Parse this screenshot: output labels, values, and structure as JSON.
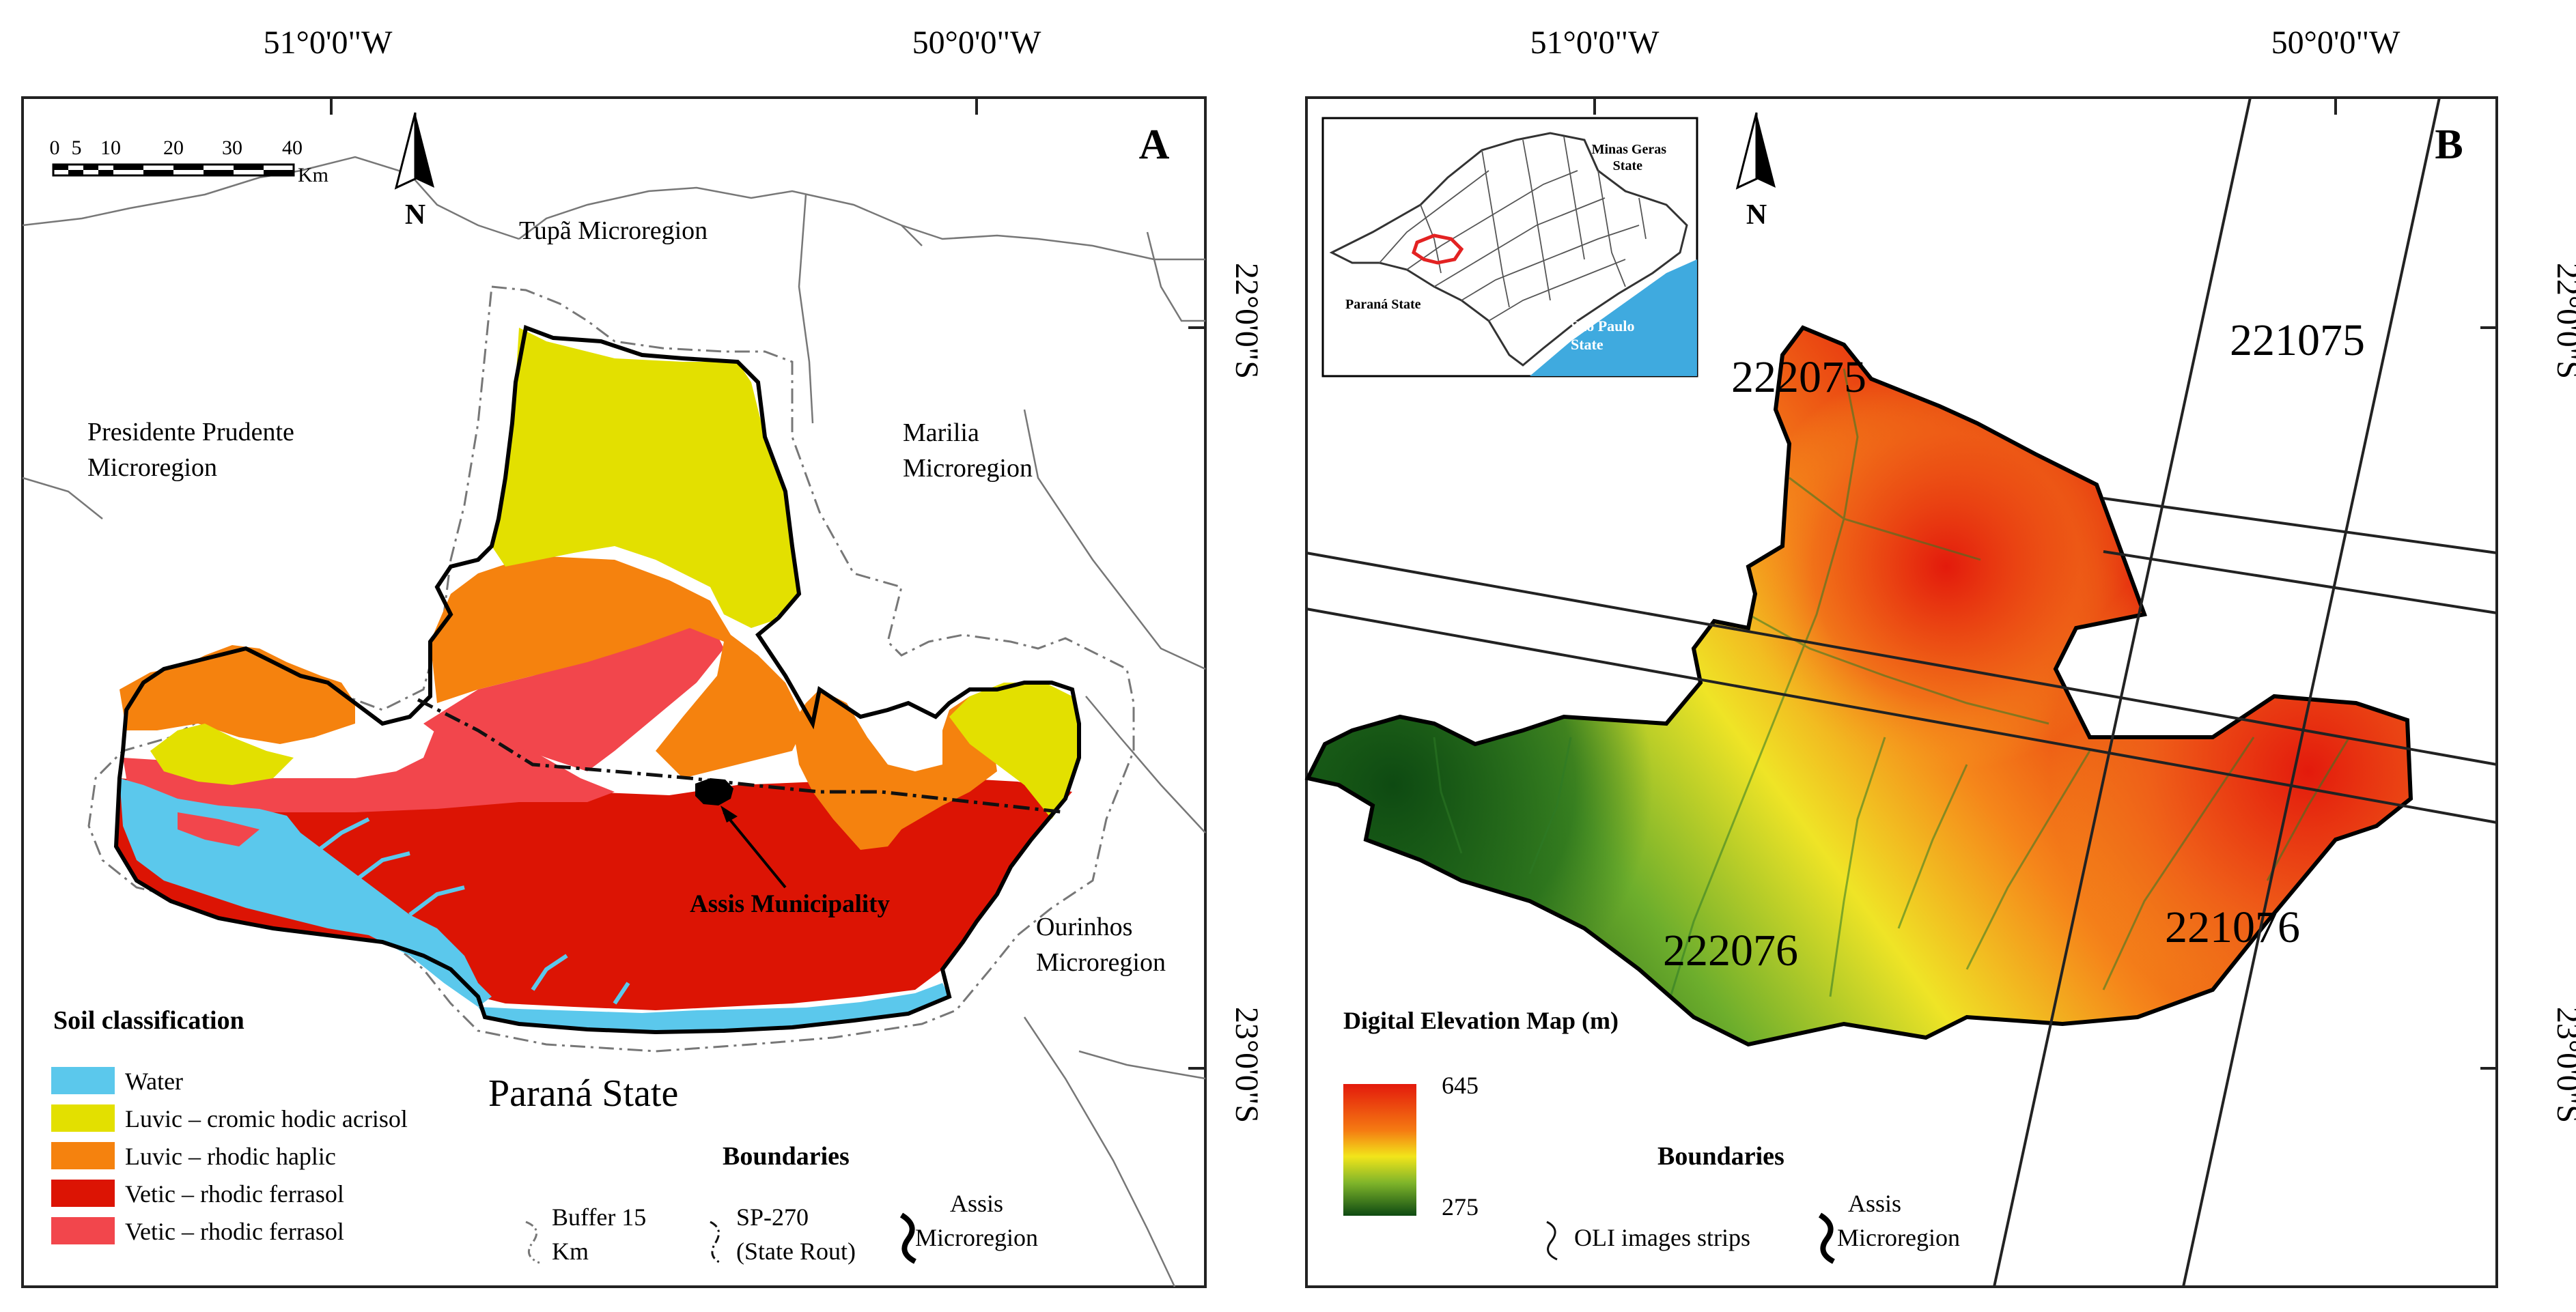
{
  "coordinates": {
    "lon_west": "51°0'0\"W",
    "lon_east": "50°0'0\"W",
    "lat_north": "22°0'0\"S",
    "lat_south": "23°0'0\"S"
  },
  "colors": {
    "water": "#5BC8EC",
    "luvic_cromic": "#E3E000",
    "luvic_rhodic": "#F5820E",
    "vetic_rhodic_dark": "#DC1404",
    "vetic_rhodic_light": "#F2464C",
    "dem_high": "#E31A0C",
    "dem_mid": "#F2E51A",
    "dem_low": "#0E4A12",
    "inset_water": "#3FAADF",
    "inset_highlight": "#E32222"
  },
  "panel_a": {
    "letter": "A",
    "north_label": "N",
    "scale": {
      "ticks": [
        "0",
        "5",
        "10",
        "20",
        "30",
        "40"
      ],
      "unit": "Km"
    },
    "regions": {
      "tupa": "Tupã Microregion",
      "presidente_1": "Presidente Prudente",
      "presidente_2": "Microregion",
      "marilia_1": "Marilia",
      "marilia_2": "Microregion",
      "ourinhos_1": "Ourinhos",
      "ourinhos_2": "Microregion",
      "parana": "Paraná State"
    },
    "municipality": "Assis Municipality",
    "legend": {
      "title": "Soil classification",
      "items": [
        {
          "label": "Water",
          "color": "#5BC8EC"
        },
        {
          "label": "Luvic – cromic hodic acrisol",
          "color": "#E3E000"
        },
        {
          "label": "Luvic – rhodic haplic",
          "color": "#F5820E"
        },
        {
          "label": "Vetic – rhodic ferrasol",
          "color": "#DC1404"
        },
        {
          "label": "Vetic – rhodic ferrasol",
          "color": "#F2464C"
        }
      ]
    },
    "boundaries": {
      "title": "Boundaries",
      "buffer_1": "Buffer 15",
      "buffer_2": "Km",
      "sp_1": "SP-270",
      "sp_2": "(State Rout)",
      "assis_1": "Assis",
      "assis_2": "Microregion"
    }
  },
  "panel_b": {
    "letter": "B",
    "north_label": "N",
    "inset": {
      "minas": "Minas Geras",
      "minas_2": "State",
      "parana": "Paraná State",
      "saopaulo": "São Paulo",
      "saopaulo_2": "State"
    },
    "strips": [
      "222075",
      "221075",
      "222076",
      "221076"
    ],
    "dem": {
      "title": "Digital Elevation Map (m)",
      "max": "645",
      "min": "275"
    },
    "boundaries": {
      "title": "Boundaries",
      "oli": "OLI images strips",
      "assis_1": "Assis",
      "assis_2": "Microregion"
    }
  }
}
